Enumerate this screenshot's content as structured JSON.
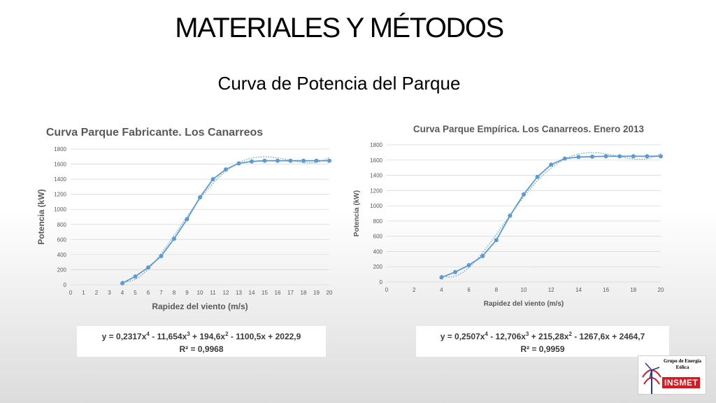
{
  "slide": {
    "title": "MATERIALES Y MÉTODOS",
    "subtitle": "Curva de Potencia del Parque"
  },
  "logo": {
    "text": "Grupo de Energía Eólica",
    "brand": "INSMET"
  },
  "colors": {
    "series": "#5b9bd5",
    "grid": "#d9d9d9",
    "text": "#595959",
    "logo_red": "#d71920"
  },
  "chart_data": [
    {
      "type": "line",
      "title": "Curva Parque Fabricante. Los Canarreos",
      "xlabel": "Rapidez del viento (m/s)",
      "ylabel": "Potencia (kW)",
      "x_ticks": [
        0,
        1,
        2,
        3,
        4,
        5,
        6,
        7,
        8,
        9,
        10,
        11,
        12,
        13,
        14,
        15,
        16,
        17,
        18,
        19,
        20
      ],
      "y_ticks": [
        0,
        200,
        400,
        600,
        800,
        1000,
        1200,
        1400,
        1600,
        1800
      ],
      "xlim": [
        0,
        20
      ],
      "ylim": [
        0,
        1800
      ],
      "grid": "horizontal",
      "series": [
        {
          "x": [
            4,
            5,
            6,
            7,
            8,
            9,
            10,
            11,
            12,
            13,
            14,
            15,
            16,
            17,
            18,
            19,
            20
          ],
          "y": [
            20,
            110,
            230,
            380,
            610,
            870,
            1160,
            1400,
            1530,
            1610,
            1635,
            1645,
            1645,
            1645,
            1645,
            1645,
            1645
          ],
          "marker": "circle",
          "style": "solid"
        }
      ],
      "trendline": {
        "type": "polynomial",
        "order": 4,
        "coefficients": [
          0.2317,
          -11.654,
          194.6,
          -1100.5,
          2022.9
        ],
        "style": "dotted"
      },
      "equation_text": [
        "y = 0,2317x",
        "4",
        " - 11,654x",
        "3",
        " + 194,6x",
        "2",
        " - 1100,5x + 2022,9"
      ],
      "r2_text": "R² = 0,9968"
    },
    {
      "type": "line",
      "title": "Curva Parque Empírica. Los Canarreos. Enero 2013",
      "xlabel": "Rapidez del viento (m/s)",
      "ylabel": "Potencia (kW)",
      "x_ticks": [
        0,
        2,
        4,
        6,
        8,
        10,
        12,
        14,
        16,
        18,
        20
      ],
      "y_ticks": [
        0,
        200,
        400,
        600,
        800,
        1000,
        1200,
        1400,
        1600,
        1800
      ],
      "xlim": [
        0,
        20
      ],
      "ylim": [
        0,
        1800
      ],
      "grid": "horizontal",
      "series": [
        {
          "x": [
            4,
            5,
            6,
            7,
            8,
            9,
            10,
            11,
            12,
            13,
            14,
            15,
            16,
            17,
            18,
            19,
            20
          ],
          "y": [
            60,
            130,
            220,
            340,
            550,
            870,
            1150,
            1380,
            1540,
            1620,
            1640,
            1645,
            1650,
            1650,
            1650,
            1650,
            1650
          ],
          "marker": "circle",
          "style": "solid"
        }
      ],
      "trendline": {
        "type": "polynomial",
        "order": 4,
        "coefficients": [
          0.2507,
          -12.706,
          215.28,
          -1267.6,
          2464.7
        ],
        "style": "dotted"
      },
      "equation_text": [
        "y = 0,2507x",
        "4",
        " - 12,706x",
        "3",
        " + 215,28x",
        "2",
        " - 1267,6x + 2464,7"
      ],
      "r2_text": "R² = 0,9959"
    }
  ]
}
